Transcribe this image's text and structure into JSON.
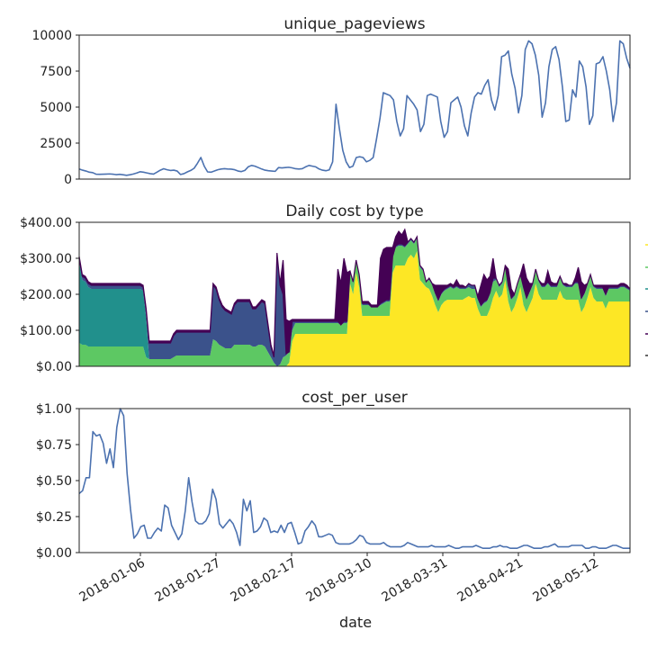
{
  "colors": {
    "line": "#4c72b0",
    "stack": [
      "#440154",
      "#3b528b",
      "#21908c",
      "#5dc863",
      "#fde725"
    ]
  },
  "chart_data": [
    {
      "type": "line",
      "title": "unique_pageviews",
      "ylim": [
        0,
        10000
      ],
      "yticks": [
        0,
        2500,
        5000,
        7500,
        10000
      ],
      "ytick_labels": [
        "0",
        "2500",
        "5000",
        "7500",
        "10000"
      ],
      "x_start": "2017-12-20",
      "x_end": "2018-05-22",
      "values": [
        700,
        620,
        560,
        480,
        450,
        340,
        330,
        340,
        350,
        360,
        340,
        310,
        330,
        300,
        260,
        300,
        350,
        420,
        510,
        480,
        430,
        380,
        350,
        480,
        620,
        720,
        650,
        600,
        620,
        560,
        320,
        380,
        500,
        600,
        750,
        1100,
        1500,
        900,
        500,
        480,
        560,
        650,
        700,
        720,
        700,
        690,
        650,
        560,
        520,
        600,
        850,
        950,
        900,
        800,
        700,
        620,
        580,
        560,
        540,
        800,
        780,
        800,
        820,
        780,
        720,
        700,
        720,
        850,
        950,
        900,
        850,
        700,
        620,
        580,
        640,
        1200,
        5200,
        3500,
        2000,
        1200,
        800,
        900,
        1500,
        1550,
        1500,
        1200,
        1300,
        1500,
        2800,
        4200,
        6000,
        5900,
        5800,
        5500,
        4000,
        3000,
        3500,
        5800,
        5500,
        5200,
        4800,
        3300,
        3800,
        5800,
        5900,
        5800,
        5700,
        4000,
        2900,
        3300,
        5300,
        5500,
        5700,
        5000,
        3700,
        3000,
        4600,
        5700,
        6000,
        5900,
        6500,
        6900,
        5500,
        4800,
        5800,
        8500,
        8600,
        8900,
        7300,
        6300,
        4600,
        5800,
        9000,
        9600,
        9400,
        8600,
        7200,
        4300,
        5300,
        7800,
        9000,
        9200,
        8300,
        6400,
        4000,
        4100,
        6200,
        5700,
        8200,
        7800,
        6400,
        3800,
        4400,
        8000,
        8100,
        8500,
        7500,
        6200,
        4000,
        5300,
        9600,
        9400,
        8400,
        7700
      ]
    },
    {
      "type": "area",
      "title": "Daily cost by type",
      "ylim": [
        0,
        400
      ],
      "yticks": [
        0,
        100,
        200,
        300,
        400
      ],
      "ytick_labels": [
        "$0.00",
        "$100.00",
        "$200.00",
        "$300.00",
        "$400.00"
      ],
      "x_start": "2017-12-20",
      "x_end": "2018-05-22",
      "segments": [
        {
          "d": [
            0,
            3
          ],
          "tot": 305,
          "s": [
            0,
            0,
            0,
            50,
            0
          ]
        },
        {
          "d": [
            3,
            53
          ],
          "tot": 225,
          "s": [
            0,
            0,
            0,
            70,
            0
          ]
        },
        {
          "d": [
            53,
            68
          ],
          "tot": 225,
          "s": [
            0,
            0,
            0,
            80,
            0
          ]
        },
        {
          "d": [
            68,
            89
          ],
          "tot": 225,
          "s": [
            0,
            0,
            0,
            75,
            0
          ]
        },
        {
          "d": [
            89,
            105
          ],
          "tot": 215,
          "s": [
            0,
            0,
            0,
            65,
            0
          ]
        },
        {
          "d": [
            105,
            124
          ],
          "tot": 185,
          "s": [
            0,
            0,
            0,
            50,
            0
          ]
        },
        {
          "d": [
            124,
            135
          ],
          "tot": 155,
          "s": [
            0,
            0,
            0,
            50,
            0
          ]
        },
        {
          "d": [
            135,
            150
          ],
          "tot": 175,
          "s": [
            0,
            0,
            0,
            65,
            0
          ]
        },
        {
          "d": [
            150,
            157
          ],
          "tot": 140,
          "s": [
            0,
            0,
            0,
            50,
            0
          ]
        },
        {
          "d": [
            157,
            163
          ],
          "tot": 300,
          "s": [
            0,
            0,
            0,
            50,
            0
          ]
        }
      ],
      "values": [
        305,
        255,
        250,
        235,
        230,
        230,
        230,
        230,
        230,
        230,
        230,
        230,
        230,
        230,
        230,
        230,
        230,
        230,
        230,
        230,
        230,
        225,
        160,
        70,
        70,
        70,
        70,
        70,
        70,
        70,
        70,
        90,
        100,
        100,
        100,
        100,
        100,
        100,
        100,
        100,
        100,
        100,
        100,
        100,
        230,
        220,
        190,
        170,
        160,
        155,
        150,
        175,
        185,
        185,
        185,
        185,
        185,
        165,
        165,
        175,
        185,
        180,
        120,
        60,
        30,
        315,
        230,
        295,
        130,
        125,
        130,
        130,
        130,
        130,
        130,
        130,
        130,
        130,
        130,
        130,
        130,
        130,
        130,
        130,
        130,
        270,
        230,
        300,
        260,
        180,
        180,
        180,
        180,
        180,
        180,
        180,
        170,
        170,
        170,
        300,
        325,
        330,
        330,
        330,
        360,
        375,
        365,
        380,
        290,
        280,
        270,
        260,
        240,
        215,
        170,
        205,
        220,
        225,
        225,
        225,
        225,
        225,
        230,
        225,
        240,
        225,
        225,
        195,
        180,
        180,
        180,
        195,
        225,
        255,
        240,
        250,
        300,
        220,
        190,
        205,
        235,
        270,
        215,
        190,
        215,
        230,
        285,
        245,
        230,
        230,
        230,
        230,
        230,
        230,
        265,
        235,
        230,
        230,
        230,
        230,
        230,
        195,
        210,
        245,
        275,
        235,
        225,
        225,
        220,
        200,
        225,
        225,
        225,
        225,
        225,
        225,
        225,
        225,
        230,
        230,
        225,
        200
      ],
      "yellow": [
        0,
        0,
        0,
        0,
        0,
        0,
        0,
        0,
        0,
        0,
        0,
        0,
        0,
        0,
        0,
        0,
        0,
        0,
        0,
        0,
        0,
        0,
        0,
        0,
        0,
        0,
        0,
        0,
        0,
        0,
        0,
        0,
        0,
        0,
        0,
        0,
        0,
        0,
        0,
        0,
        0,
        0,
        0,
        0,
        0,
        0,
        0,
        0,
        0,
        0,
        0,
        0,
        0,
        0,
        0,
        0,
        0,
        0,
        0,
        0,
        0,
        0,
        0,
        0,
        0,
        0,
        0,
        0,
        0,
        10,
        70,
        90,
        90,
        90,
        90,
        90,
        90,
        90,
        90,
        90,
        90,
        90,
        90,
        90,
        90,
        90,
        90,
        90,
        90,
        230,
        200,
        260,
        220,
        140,
        140,
        140,
        140,
        140,
        140,
        140,
        140,
        140,
        140,
        260,
        280,
        280,
        280,
        280,
        300,
        310,
        300,
        320,
        240,
        230,
        220,
        215,
        195,
        170,
        150,
        170,
        180,
        185,
        185,
        185,
        185,
        185,
        185,
        190,
        195,
        190,
        190,
        160,
        140,
        140,
        140,
        160,
        190,
        210,
        190,
        200,
        240,
        180,
        150,
        165,
        190,
        220,
        170,
        150,
        170,
        190,
        230,
        200,
        185,
        185,
        185,
        185,
        185,
        185,
        210,
        190,
        185,
        185,
        185,
        185,
        185,
        150,
        165,
        190,
        220,
        190,
        180,
        180,
        180,
        160,
        180,
        180,
        180,
        180,
        180,
        180,
        180,
        180,
        180,
        180,
        180,
        160
      ],
      "green": [
        65,
        60,
        60,
        55,
        55,
        55,
        55,
        55,
        55,
        55,
        55,
        55,
        55,
        55,
        55,
        55,
        55,
        55,
        55,
        55,
        55,
        55,
        25,
        20,
        20,
        20,
        20,
        20,
        20,
        20,
        20,
        25,
        30,
        30,
        30,
        30,
        30,
        30,
        30,
        30,
        30,
        30,
        30,
        30,
        75,
        70,
        60,
        55,
        50,
        50,
        50,
        60,
        60,
        60,
        60,
        60,
        60,
        55,
        55,
        60,
        60,
        55,
        40,
        25,
        10,
        0,
        5,
        25,
        30,
        30,
        30,
        30,
        30,
        30,
        30,
        30,
        30,
        30,
        30,
        30,
        30,
        30,
        30,
        30,
        30,
        30,
        25,
        30,
        30,
        30,
        30,
        30,
        30,
        30,
        30,
        30,
        25,
        25,
        25,
        30,
        35,
        40,
        40,
        40,
        50,
        55,
        55,
        50,
        40,
        40,
        40,
        35,
        35,
        35,
        15,
        25,
        30,
        30,
        30,
        30,
        30,
        30,
        35,
        30,
        35,
        30,
        30,
        25,
        25,
        25,
        25,
        25,
        25,
        35,
        40,
        40,
        45,
        30,
        30,
        30,
        35,
        40,
        35,
        30,
        35,
        30,
        45,
        35,
        35,
        35,
        35,
        35,
        35,
        35,
        45,
        35,
        35,
        35,
        35,
        35,
        35,
        35,
        35,
        45,
        45,
        35,
        35,
        35,
        30,
        30,
        35,
        35,
        35,
        35,
        35,
        35,
        35,
        35,
        40,
        40,
        35,
        30
      ],
      "teal": [
        225,
        180,
        175,
        165,
        160,
        160,
        160,
        160,
        160,
        160,
        160,
        160,
        160,
        160,
        160,
        160,
        160,
        160,
        160,
        160,
        160,
        155,
        110,
        0,
        0,
        0,
        0,
        0,
        0,
        0,
        0,
        0,
        0,
        0,
        0,
        0,
        0,
        0,
        0,
        0,
        0,
        0,
        0,
        0,
        0,
        0,
        0,
        0,
        0,
        0,
        0,
        0,
        0,
        0,
        0,
        0,
        0,
        0,
        0,
        0,
        0,
        0,
        0,
        0,
        0,
        0,
        0,
        0,
        0,
        0,
        0,
        0,
        0,
        0,
        0,
        0,
        0,
        0,
        0,
        0,
        0,
        0,
        0,
        0,
        0,
        0,
        0,
        0,
        0,
        0,
        0,
        0,
        0,
        0,
        0,
        0,
        0,
        0,
        0,
        0,
        0,
        0,
        0,
        0,
        0,
        0,
        0,
        0,
        0,
        0,
        0,
        0,
        0,
        0,
        0,
        0,
        0,
        0,
        0,
        0,
        0,
        0,
        0,
        0,
        0,
        0,
        0,
        0,
        0,
        0,
        0,
        0,
        0,
        0,
        0,
        0,
        0,
        0,
        0,
        0,
        0,
        0,
        0,
        0,
        0,
        0,
        0,
        0,
        0,
        0,
        0,
        0,
        0,
        0,
        0,
        0,
        0,
        0,
        0,
        0,
        0,
        0,
        0,
        0,
        0,
        0,
        0,
        0,
        0,
        0,
        0,
        0,
        0,
        0,
        0,
        0,
        0,
        0,
        0,
        0,
        0,
        0,
        0,
        0,
        0,
        0,
        0,
        0,
        0
      ],
      "blue": [
        10,
        10,
        10,
        10,
        10,
        10,
        10,
        10,
        10,
        10,
        10,
        10,
        10,
        10,
        10,
        10,
        10,
        10,
        10,
        10,
        10,
        10,
        20,
        45,
        45,
        45,
        45,
        45,
        45,
        45,
        45,
        60,
        65,
        65,
        65,
        65,
        65,
        65,
        65,
        65,
        65,
        65,
        65,
        65,
        150,
        145,
        125,
        110,
        105,
        100,
        95,
        110,
        120,
        120,
        120,
        120,
        120,
        105,
        105,
        110,
        120,
        120,
        75,
        30,
        15,
        310,
        220,
        175,
        5,
        0,
        25,
        5,
        5,
        5,
        5,
        5,
        5,
        5,
        5,
        5,
        5,
        5,
        5,
        5,
        5,
        5,
        0,
        5,
        5,
        5,
        5,
        5,
        5,
        5,
        5,
        5,
        0,
        0,
        0,
        5,
        5,
        5,
        5,
        5,
        5,
        5,
        5,
        5,
        5,
        5,
        5,
        5,
        5,
        5,
        0,
        5,
        5,
        5,
        5,
        5,
        5,
        5,
        5,
        5,
        5,
        5,
        5,
        5,
        10,
        10,
        10,
        5,
        5,
        5,
        5,
        5,
        10,
        5,
        5,
        5,
        5,
        5,
        5,
        5,
        5,
        5,
        5,
        5,
        5,
        5,
        5,
        5,
        5,
        5,
        5,
        5,
        5,
        5,
        5,
        5,
        5,
        5,
        5,
        5,
        5,
        5,
        5,
        5,
        5,
        5,
        5,
        5,
        5,
        5,
        5,
        5,
        5,
        5,
        5,
        5,
        5,
        5,
        5,
        5,
        5,
        5,
        5,
        5
      ]
    },
    {
      "type": "line",
      "title": "cost_per_user",
      "xlabel": "date",
      "ylim": [
        0,
        1.0
      ],
      "yticks": [
        0,
        0.25,
        0.5,
        0.75,
        1.0
      ],
      "ytick_labels": [
        "$0.00",
        "$0.25",
        "$0.50",
        "$0.75",
        "$1.00"
      ],
      "x_start": "2017-12-20",
      "x_end": "2018-05-22",
      "xticks": [
        "2018-01-06",
        "2018-01-27",
        "2018-02-17",
        "2018-03-10",
        "2018-03-31",
        "2018-04-21",
        "2018-05-12"
      ],
      "values": [
        0.41,
        0.43,
        0.52,
        0.52,
        0.84,
        0.81,
        0.82,
        0.76,
        0.62,
        0.72,
        0.59,
        0.87,
        1.0,
        0.95,
        0.55,
        0.3,
        0.1,
        0.13,
        0.18,
        0.19,
        0.1,
        0.1,
        0.14,
        0.17,
        0.15,
        0.33,
        0.31,
        0.19,
        0.14,
        0.09,
        0.13,
        0.29,
        0.52,
        0.35,
        0.22,
        0.2,
        0.2,
        0.22,
        0.27,
        0.44,
        0.37,
        0.2,
        0.17,
        0.2,
        0.23,
        0.2,
        0.14,
        0.05,
        0.37,
        0.29,
        0.36,
        0.14,
        0.15,
        0.18,
        0.24,
        0.22,
        0.14,
        0.15,
        0.14,
        0.19,
        0.14,
        0.2,
        0.21,
        0.14,
        0.06,
        0.07,
        0.15,
        0.18,
        0.22,
        0.19,
        0.11,
        0.11,
        0.12,
        0.13,
        0.12,
        0.07,
        0.06,
        0.06,
        0.06,
        0.06,
        0.07,
        0.09,
        0.12,
        0.11,
        0.07,
        0.06,
        0.06,
        0.06,
        0.06,
        0.07,
        0.05,
        0.04,
        0.04,
        0.04,
        0.04,
        0.05,
        0.07,
        0.06,
        0.05,
        0.04,
        0.04,
        0.04,
        0.04,
        0.05,
        0.04,
        0.04,
        0.04,
        0.04,
        0.05,
        0.04,
        0.03,
        0.03,
        0.04,
        0.04,
        0.04,
        0.04,
        0.05,
        0.04,
        0.03,
        0.03,
        0.03,
        0.04,
        0.04,
        0.05,
        0.04,
        0.04,
        0.03,
        0.03,
        0.03,
        0.04,
        0.05,
        0.05,
        0.04,
        0.03,
        0.03,
        0.03,
        0.04,
        0.04,
        0.05,
        0.06,
        0.04,
        0.04,
        0.04,
        0.04,
        0.05,
        0.05,
        0.05,
        0.05,
        0.03,
        0.03,
        0.04,
        0.04,
        0.03,
        0.03,
        0.03,
        0.04,
        0.05,
        0.05,
        0.04,
        0.03,
        0.03,
        0.03
      ]
    }
  ]
}
